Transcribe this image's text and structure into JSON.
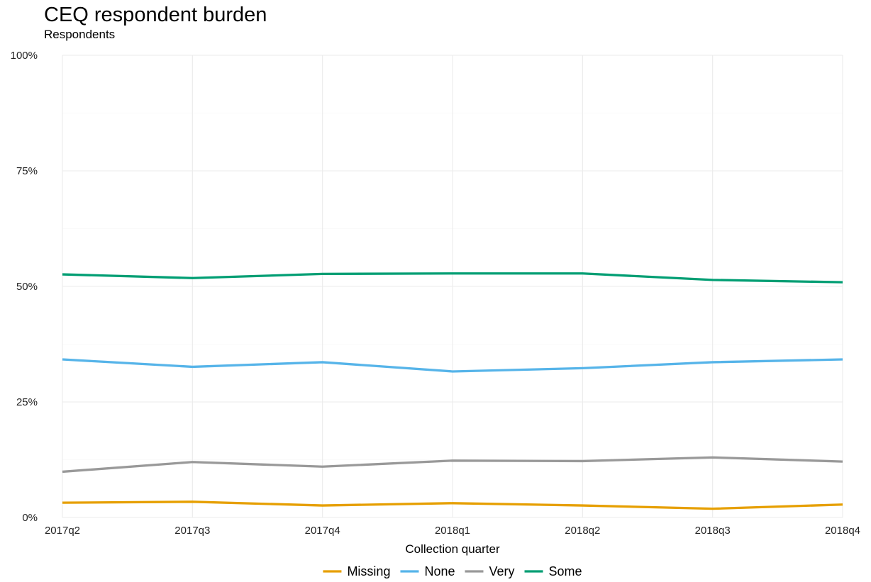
{
  "header": {
    "title": "CEQ respondent burden",
    "subtitle": "Respondents"
  },
  "chart_data": {
    "type": "line",
    "title": "CEQ respondent burden",
    "subtitle": "Respondents",
    "xlabel": "Collection quarter",
    "ylabel": "",
    "categories": [
      "2017q2",
      "2017q3",
      "2017q4",
      "2018q1",
      "2018q2",
      "2018q3",
      "2018q4"
    ],
    "ylim": [
      0,
      100
    ],
    "yticks": [
      0,
      25,
      50,
      75,
      100
    ],
    "ytick_labels": [
      "0%",
      "25%",
      "50%",
      "75%",
      "100%"
    ],
    "grid": true,
    "legend_position": "bottom",
    "series": [
      {
        "name": "Missing",
        "color": "#E69F00",
        "values": [
          3.2,
          3.4,
          2.6,
          3.1,
          2.6,
          1.9,
          2.8
        ]
      },
      {
        "name": "None",
        "color": "#56B4E9",
        "values": [
          34.2,
          32.6,
          33.6,
          31.6,
          32.3,
          33.6,
          34.2
        ]
      },
      {
        "name": "Very",
        "color": "#999999",
        "values": [
          9.9,
          12.0,
          11.0,
          12.3,
          12.2,
          13.0,
          12.1
        ]
      },
      {
        "name": "Some",
        "color": "#009E73",
        "values": [
          52.6,
          51.8,
          52.7,
          52.8,
          52.8,
          51.4,
          50.9
        ]
      }
    ]
  }
}
